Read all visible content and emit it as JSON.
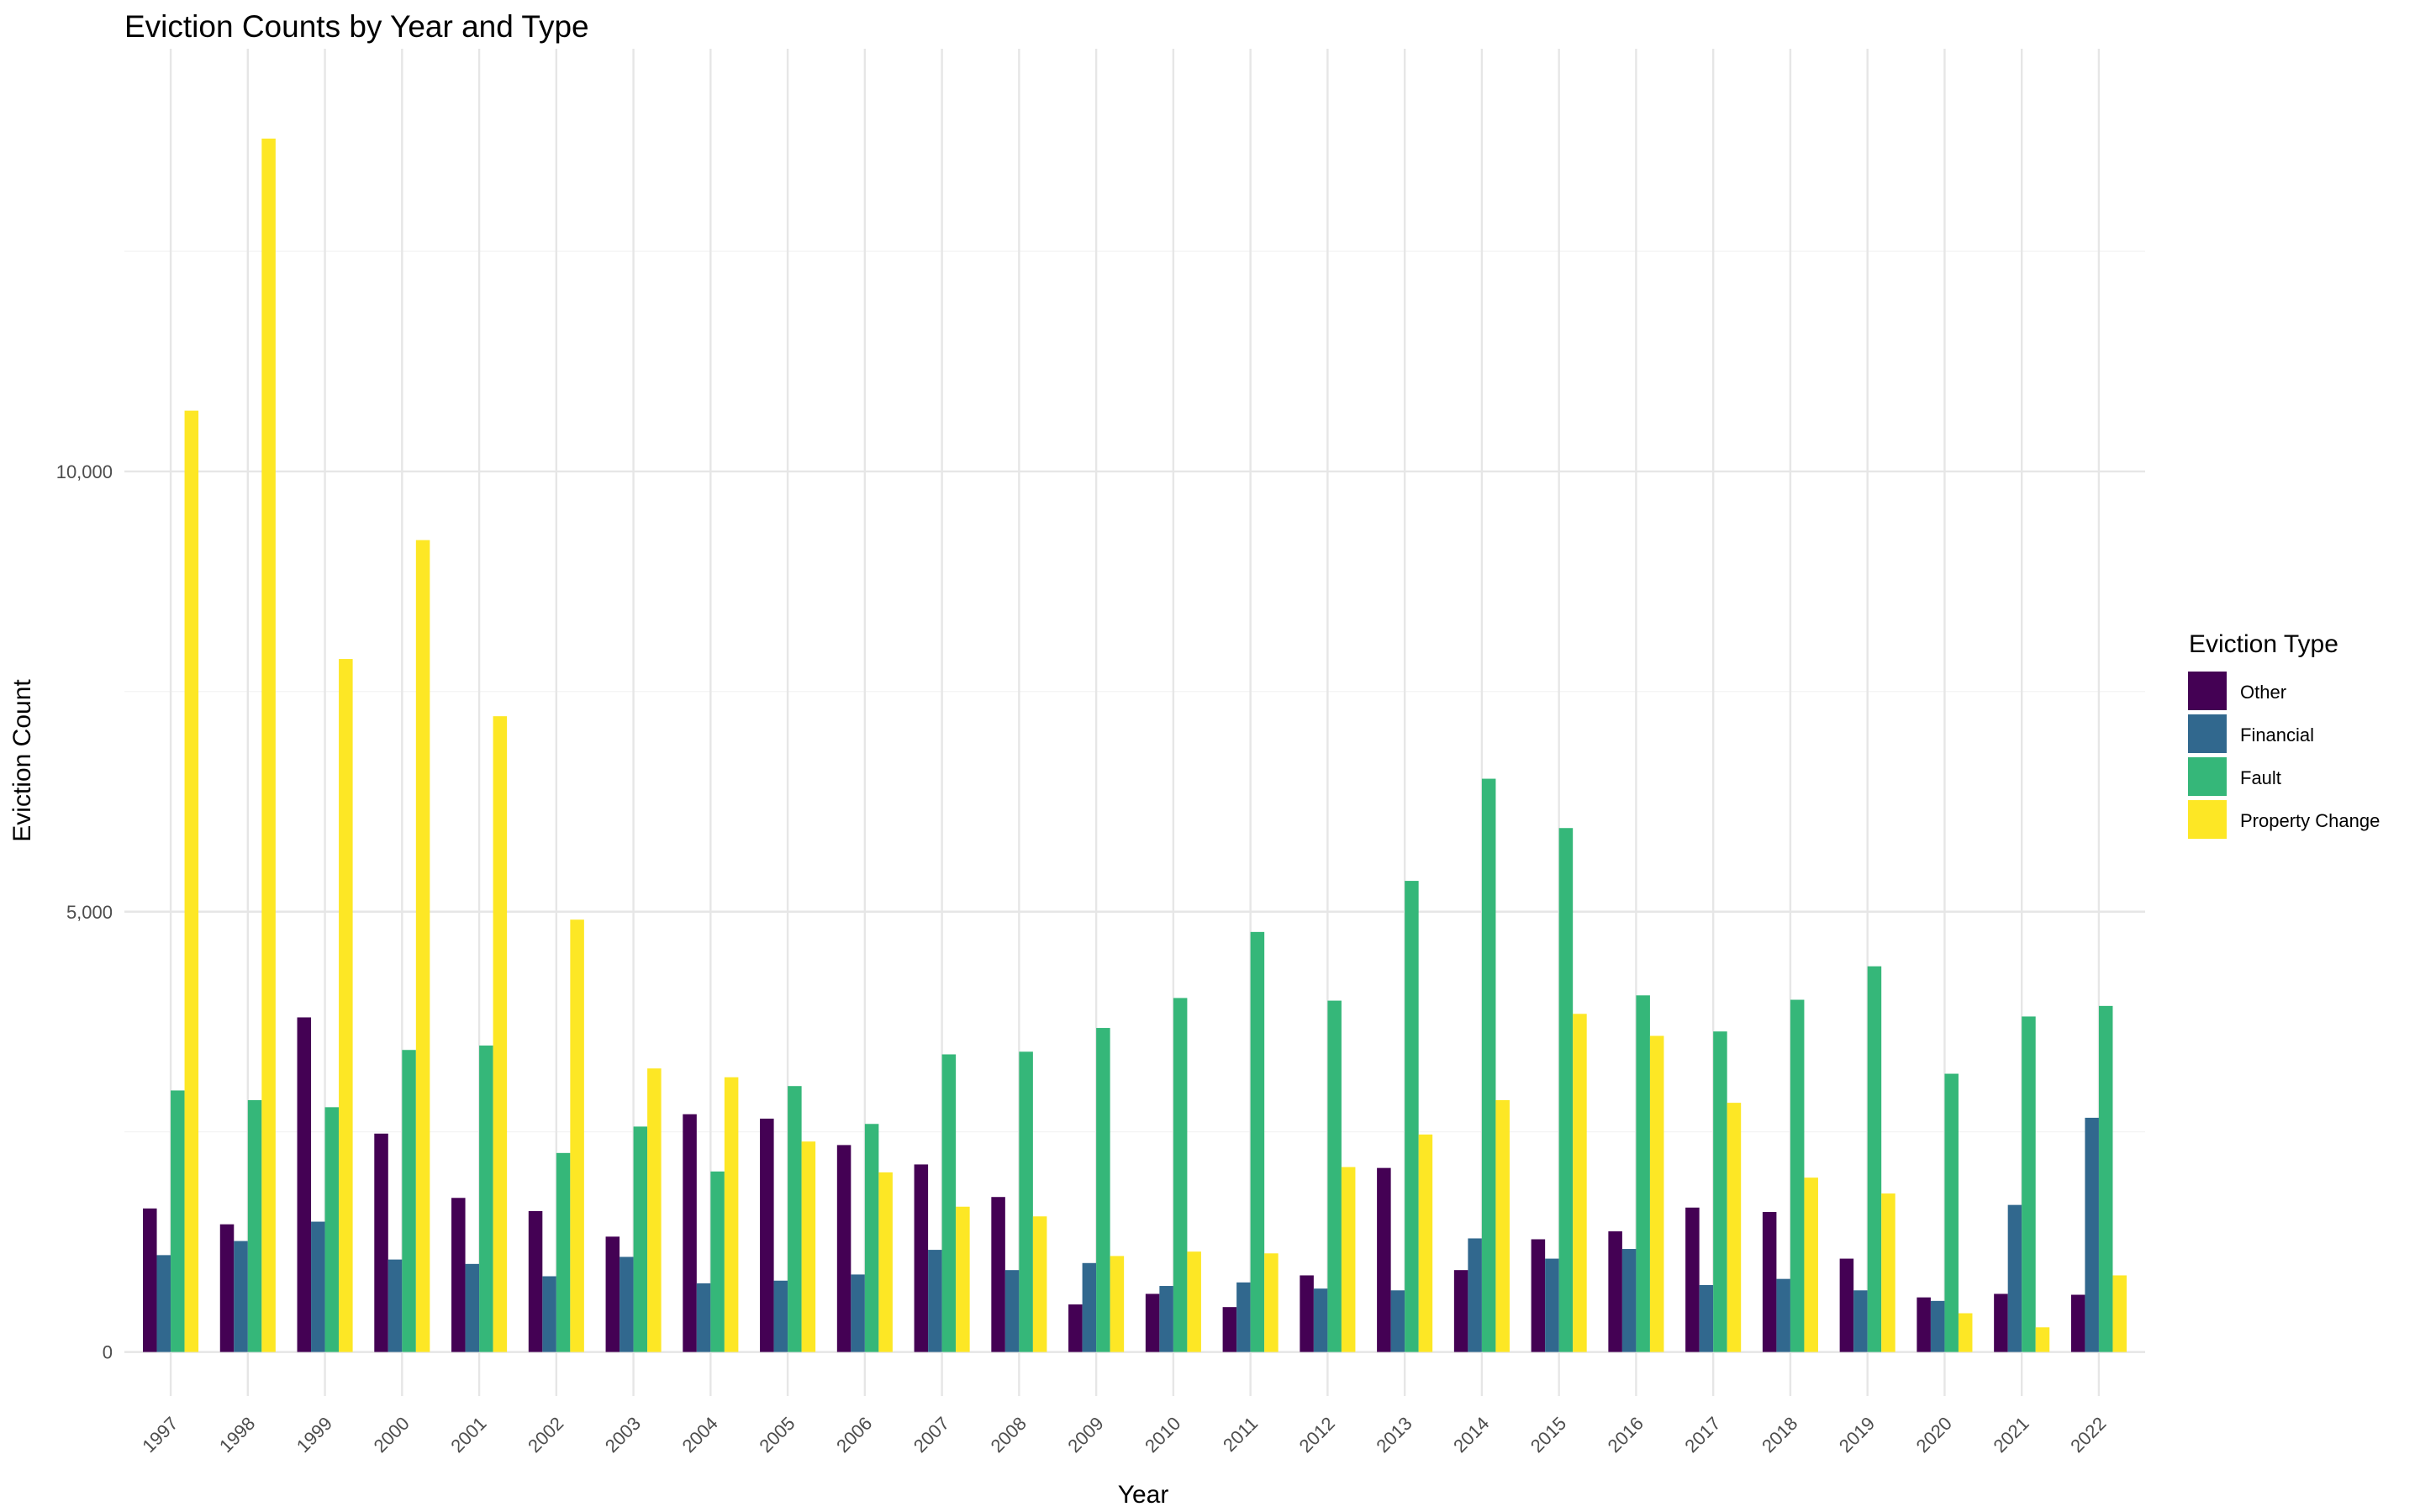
{
  "chart_data": {
    "type": "bar",
    "title": "Eviction Counts by Year and Type",
    "xlabel": "Year",
    "ylabel": "Eviction Count",
    "ylim": [
      -500,
      14800
    ],
    "yticks": [
      0,
      5000,
      10000
    ],
    "ytick_labels": [
      "0",
      "5,000",
      "10,000"
    ],
    "grid": true,
    "legend_position": "right",
    "legend_title": "Eviction Type",
    "categories": [
      "1997",
      "1998",
      "1999",
      "2000",
      "2001",
      "2002",
      "2003",
      "2004",
      "2005",
      "2006",
      "2007",
      "2008",
      "2009",
      "2010",
      "2011",
      "2012",
      "2013",
      "2014",
      "2015",
      "2016",
      "2017",
      "2018",
      "2019",
      "2020",
      "2021",
      "2022"
    ],
    "series": [
      {
        "name": "Other",
        "color": "#440154",
        "values": [
          1630,
          1450,
          3800,
          2480,
          1750,
          1600,
          1310,
          2700,
          2650,
          2350,
          2130,
          1760,
          540,
          660,
          510,
          870,
          2090,
          930,
          1280,
          1370,
          1640,
          1590,
          1060,
          620,
          660,
          650
        ]
      },
      {
        "name": "Financial",
        "color": "#31688E",
        "values": [
          1100,
          1260,
          1480,
          1050,
          1000,
          860,
          1080,
          780,
          810,
          880,
          1160,
          930,
          1010,
          750,
          790,
          720,
          700,
          1290,
          1060,
          1170,
          760,
          830,
          700,
          580,
          1670,
          2660
        ]
      },
      {
        "name": "Fault",
        "color": "#35B779",
        "values": [
          2970,
          2860,
          2780,
          3430,
          3480,
          2260,
          2560,
          2050,
          3020,
          2590,
          3380,
          3410,
          3680,
          4020,
          4770,
          3990,
          5350,
          6510,
          5950,
          4050,
          3640,
          4000,
          4380,
          3160,
          3810,
          3930
        ]
      },
      {
        "name": "Property Change",
        "color": "#FDE725",
        "values": [
          10690,
          13780,
          7870,
          9220,
          7220,
          4910,
          3220,
          3120,
          2390,
          2040,
          1650,
          1540,
          1090,
          1140,
          1120,
          2100,
          2470,
          2860,
          3840,
          3590,
          2830,
          1980,
          1800,
          440,
          280,
          870
        ]
      }
    ]
  }
}
